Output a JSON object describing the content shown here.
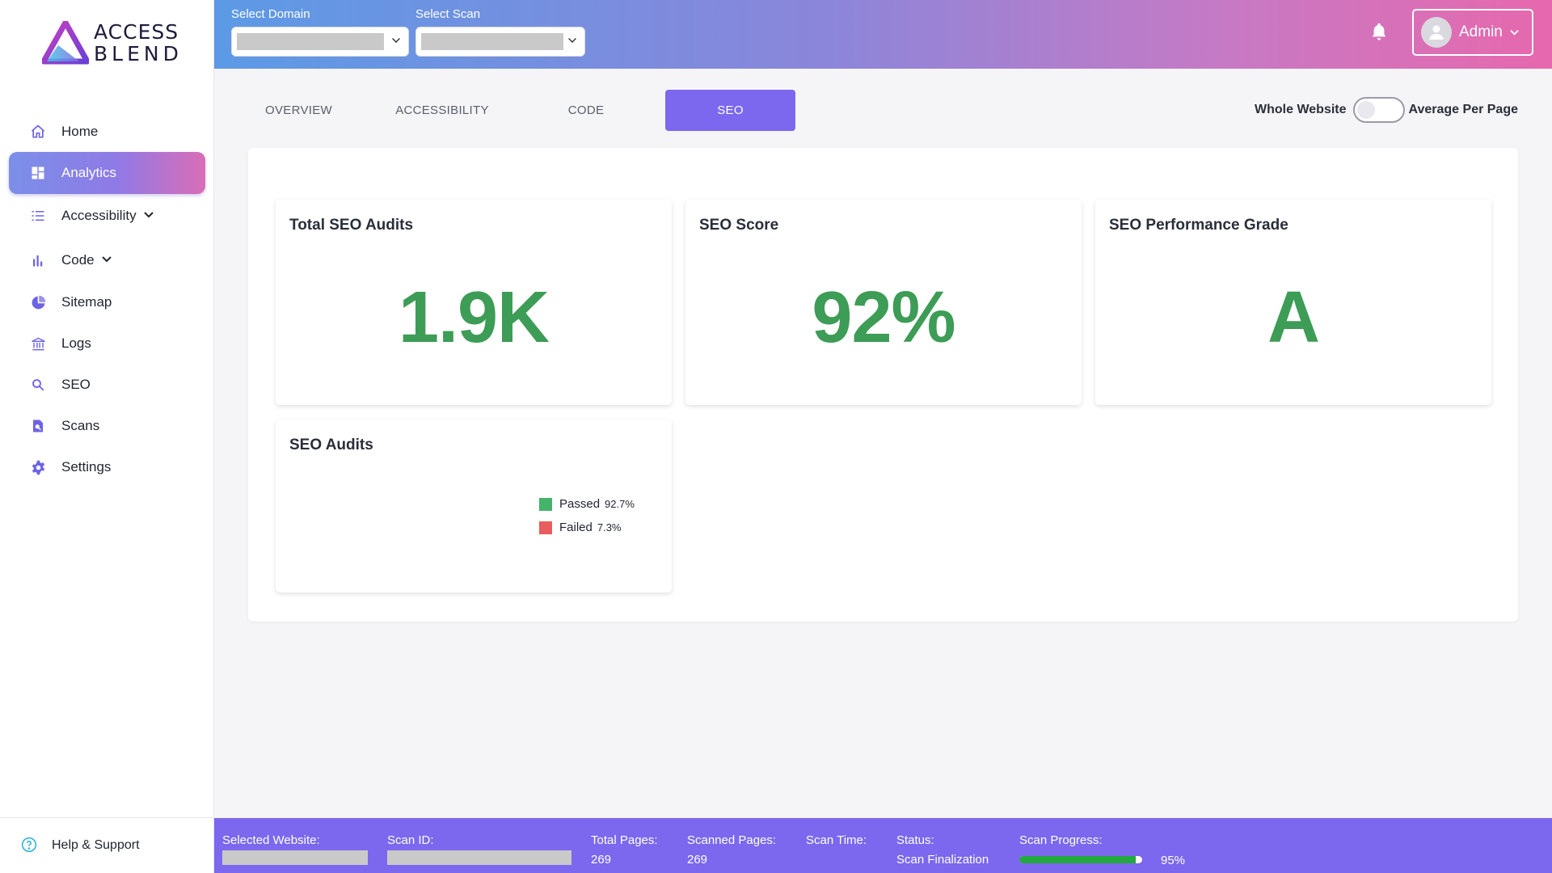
{
  "brand": {
    "line1": "ACCESS",
    "line2": "BLEND"
  },
  "sidebar": {
    "items": [
      {
        "label": "Home",
        "icon": "home-icon"
      },
      {
        "label": "Analytics",
        "icon": "dashboard-icon"
      },
      {
        "label": "Accessibility",
        "icon": "list-icon"
      },
      {
        "label": "Code",
        "icon": "bar-chart-icon"
      },
      {
        "label": "Sitemap",
        "icon": "pie-chart-icon"
      },
      {
        "label": "Logs",
        "icon": "bank-icon"
      },
      {
        "label": "SEO",
        "icon": "search-icon"
      },
      {
        "label": "Scans",
        "icon": "scan-icon"
      },
      {
        "label": "Settings",
        "icon": "gear-icon"
      }
    ],
    "help_label": "Help & Support"
  },
  "header": {
    "domain_label": "Select Domain",
    "scan_label": "Select Scan",
    "user": "Admin"
  },
  "tabs": [
    "OVERVIEW",
    "ACCESSIBILITY",
    "CODE",
    "SEO"
  ],
  "active_tab": "SEO",
  "toggle": {
    "left_label": "Whole Website",
    "right_label": "Average Per Page"
  },
  "cards": {
    "total_audits": {
      "title": "Total SEO Audits",
      "value": "1.9K"
    },
    "score": {
      "title": "SEO Score",
      "value": "92%"
    },
    "grade": {
      "title": "SEO Performance Grade",
      "value": "A"
    },
    "audits": {
      "title": "SEO Audits"
    }
  },
  "chart_data": {
    "type": "pie",
    "categories": [
      "Passed",
      "Failed"
    ],
    "values": [
      92.7,
      7.3
    ],
    "value_labels": [
      "92.7%",
      "7.3%"
    ],
    "colors": [
      "#45b36b",
      "#e85d5d"
    ],
    "legend_position": "right"
  },
  "footer": {
    "selected_website_label": "Selected Website:",
    "scan_id_label": "Scan ID:",
    "total_pages_label": "Total Pages:",
    "total_pages": "269",
    "scanned_pages_label": "Scanned Pages:",
    "scanned_pages": "269",
    "scan_time_label": "Scan Time:",
    "status_label": "Status:",
    "status": "Scan Finalization",
    "progress_label": "Scan Progress:",
    "progress_text": "95%",
    "progress_value": 0.95
  },
  "colors": {
    "accent": "#7b68ee",
    "value_green": "#3d9c56"
  }
}
